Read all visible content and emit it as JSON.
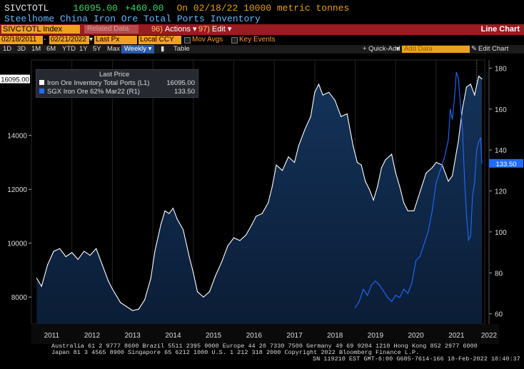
{
  "header": {
    "ticker": "SIVCTOTL",
    "last_price": "16095.00",
    "change": "+460.00",
    "on_date_text": "On 02/18/22 10000 metric tonnes",
    "security_name": "Steelhome China Iron Ore Total Ports Inventory"
  },
  "toolbar": {
    "ticker_field": "SIVCTOTL Index",
    "related_label": "Related Data",
    "actions_num": "96)",
    "actions_label": "Actions",
    "edit_num": "97)",
    "edit_label": "Edit",
    "chart_type": "Line Chart"
  },
  "range_bar": {
    "start_date": "02/18/2011",
    "end_date": "02/21/2022",
    "price_type": "Last Px",
    "currency": "Local CCY",
    "mov_avgs": "Mov Avgs",
    "key_events": "Key Events"
  },
  "period_bar": {
    "periods": [
      "1D",
      "3D",
      "1M",
      "6M",
      "YTD",
      "1Y",
      "5Y",
      "Max"
    ],
    "frequency": "Weekly",
    "table_label": "Table",
    "quick_add": "+ Quick-Add",
    "add_data_placeholder": "Add Data",
    "edit_chart": "Edit Chart"
  },
  "legend": {
    "title": "Last Price",
    "items": [
      {
        "name": "Iron Ore Inventory Total Ports",
        "axis": "(L1)",
        "value": "16095.00",
        "color": "#ffffff"
      },
      {
        "name": "SGX Iron Ore 62% Mar22",
        "axis": "(R1)",
        "value": "133.50",
        "color": "#1f6bff"
      }
    ]
  },
  "chart_data": {
    "type": "area",
    "x_labels": [
      "2011",
      "2012",
      "2013",
      "2014",
      "2015",
      "2016",
      "2017",
      "2018",
      "2019",
      "2020",
      "2021",
      "2022"
    ],
    "left_ticks": [
      "8000",
      "10000",
      "12000",
      "14000"
    ],
    "right_ticks": [
      "60",
      "80",
      "100",
      "120",
      "140",
      "160",
      "180"
    ],
    "left_last_label": "16095.00",
    "right_last_label": "133.50",
    "left_range": [
      7000,
      16800
    ],
    "right_range": [
      55,
      184
    ],
    "series": [
      {
        "name": "Iron Ore Inventory Total Ports",
        "axis": "left",
        "points": [
          [
            2011.13,
            8700
          ],
          [
            2011.25,
            8400
          ],
          [
            2011.4,
            9200
          ],
          [
            2011.55,
            9700
          ],
          [
            2011.7,
            9800
          ],
          [
            2011.85,
            9500
          ],
          [
            2012.0,
            9650
          ],
          [
            2012.15,
            9400
          ],
          [
            2012.3,
            9700
          ],
          [
            2012.45,
            9550
          ],
          [
            2012.6,
            9800
          ],
          [
            2012.75,
            9200
          ],
          [
            2012.9,
            8600
          ],
          [
            2013.0,
            8300
          ],
          [
            2013.2,
            7800
          ],
          [
            2013.35,
            7650
          ],
          [
            2013.5,
            7500
          ],
          [
            2013.65,
            7550
          ],
          [
            2013.8,
            7900
          ],
          [
            2013.95,
            8700
          ],
          [
            2014.05,
            9700
          ],
          [
            2014.2,
            10700
          ],
          [
            2014.3,
            11200
          ],
          [
            2014.4,
            11100
          ],
          [
            2014.5,
            11300
          ],
          [
            2014.6,
            10900
          ],
          [
            2014.75,
            10500
          ],
          [
            2014.9,
            9500
          ],
          [
            2015.0,
            8900
          ],
          [
            2015.1,
            8200
          ],
          [
            2015.25,
            8000
          ],
          [
            2015.4,
            8200
          ],
          [
            2015.55,
            8800
          ],
          [
            2015.7,
            9300
          ],
          [
            2015.85,
            9900
          ],
          [
            2016.0,
            10200
          ],
          [
            2016.15,
            10100
          ],
          [
            2016.3,
            10300
          ],
          [
            2016.45,
            10700
          ],
          [
            2016.55,
            11000
          ],
          [
            2016.7,
            11100
          ],
          [
            2016.85,
            11500
          ],
          [
            2016.95,
            12100
          ],
          [
            2017.05,
            12900
          ],
          [
            2017.2,
            12700
          ],
          [
            2017.35,
            13200
          ],
          [
            2017.5,
            13000
          ],
          [
            2017.6,
            13600
          ],
          [
            2017.75,
            14200
          ],
          [
            2017.9,
            14700
          ],
          [
            2018.0,
            15600
          ],
          [
            2018.1,
            15900
          ],
          [
            2018.2,
            15500
          ],
          [
            2018.35,
            15600
          ],
          [
            2018.5,
            15300
          ],
          [
            2018.65,
            14700
          ],
          [
            2018.8,
            14800
          ],
          [
            2018.95,
            13600
          ],
          [
            2019.05,
            13000
          ],
          [
            2019.15,
            12900
          ],
          [
            2019.25,
            12300
          ],
          [
            2019.35,
            12000
          ],
          [
            2019.45,
            11600
          ],
          [
            2019.55,
            12100
          ],
          [
            2019.65,
            12800
          ],
          [
            2019.75,
            13100
          ],
          [
            2019.9,
            13300
          ],
          [
            2020.0,
            12600
          ],
          [
            2020.1,
            12100
          ],
          [
            2020.2,
            11500
          ],
          [
            2020.3,
            11200
          ],
          [
            2020.45,
            11200
          ],
          [
            2020.6,
            11900
          ],
          [
            2020.75,
            12600
          ],
          [
            2020.9,
            12800
          ],
          [
            2021.0,
            13000
          ],
          [
            2021.15,
            12900
          ],
          [
            2021.3,
            12300
          ],
          [
            2021.4,
            12500
          ],
          [
            2021.55,
            13800
          ],
          [
            2021.65,
            15000
          ],
          [
            2021.75,
            15800
          ],
          [
            2021.85,
            15900
          ],
          [
            2021.95,
            15500
          ],
          [
            2022.05,
            16200
          ],
          [
            2022.13,
            16095
          ]
        ]
      },
      {
        "name": "SGX Iron Ore 62% Mar22",
        "axis": "right",
        "points": [
          [
            2019.0,
            63
          ],
          [
            2019.1,
            66
          ],
          [
            2019.2,
            72
          ],
          [
            2019.3,
            69
          ],
          [
            2019.4,
            74
          ],
          [
            2019.5,
            76
          ],
          [
            2019.6,
            74
          ],
          [
            2019.7,
            71
          ],
          [
            2019.8,
            68
          ],
          [
            2019.9,
            66
          ],
          [
            2020.0,
            69
          ],
          [
            2020.1,
            68
          ],
          [
            2020.2,
            72
          ],
          [
            2020.3,
            70
          ],
          [
            2020.4,
            75
          ],
          [
            2020.5,
            86
          ],
          [
            2020.6,
            88
          ],
          [
            2020.7,
            94
          ],
          [
            2020.8,
            100
          ],
          [
            2020.9,
            110
          ],
          [
            2021.0,
            124
          ],
          [
            2021.1,
            130
          ],
          [
            2021.2,
            136
          ],
          [
            2021.3,
            145
          ],
          [
            2021.35,
            160
          ],
          [
            2021.4,
            155
          ],
          [
            2021.45,
            165
          ],
          [
            2021.5,
            178
          ],
          [
            2021.55,
            175
          ],
          [
            2021.6,
            162
          ],
          [
            2021.65,
            150
          ],
          [
            2021.7,
            126
          ],
          [
            2021.75,
            108
          ],
          [
            2021.8,
            96
          ],
          [
            2021.85,
            98
          ],
          [
            2021.9,
            118
          ],
          [
            2021.95,
            124
          ],
          [
            2022.0,
            140
          ],
          [
            2022.05,
            144
          ],
          [
            2022.1,
            146
          ],
          [
            2022.13,
            133.5
          ]
        ]
      }
    ]
  },
  "footer": {
    "line1": "Australia 61 2 9777 8600 Brazil 5511 2395 9000 Europe 44 20 7330 7500 Germany 49 69 9204 1210 Hong Kong 852 2977 6000",
    "line2": "Japan 81 3 4565 8900        Singapore 65 6212 1000         U.S. 1 212 318 2000         Copyright 2022 Bloomberg Finance L.P.",
    "line3": "SN 119210 EST  GMT-6:00 G685-7614-166 18-Feb-2022 10:40:37"
  }
}
